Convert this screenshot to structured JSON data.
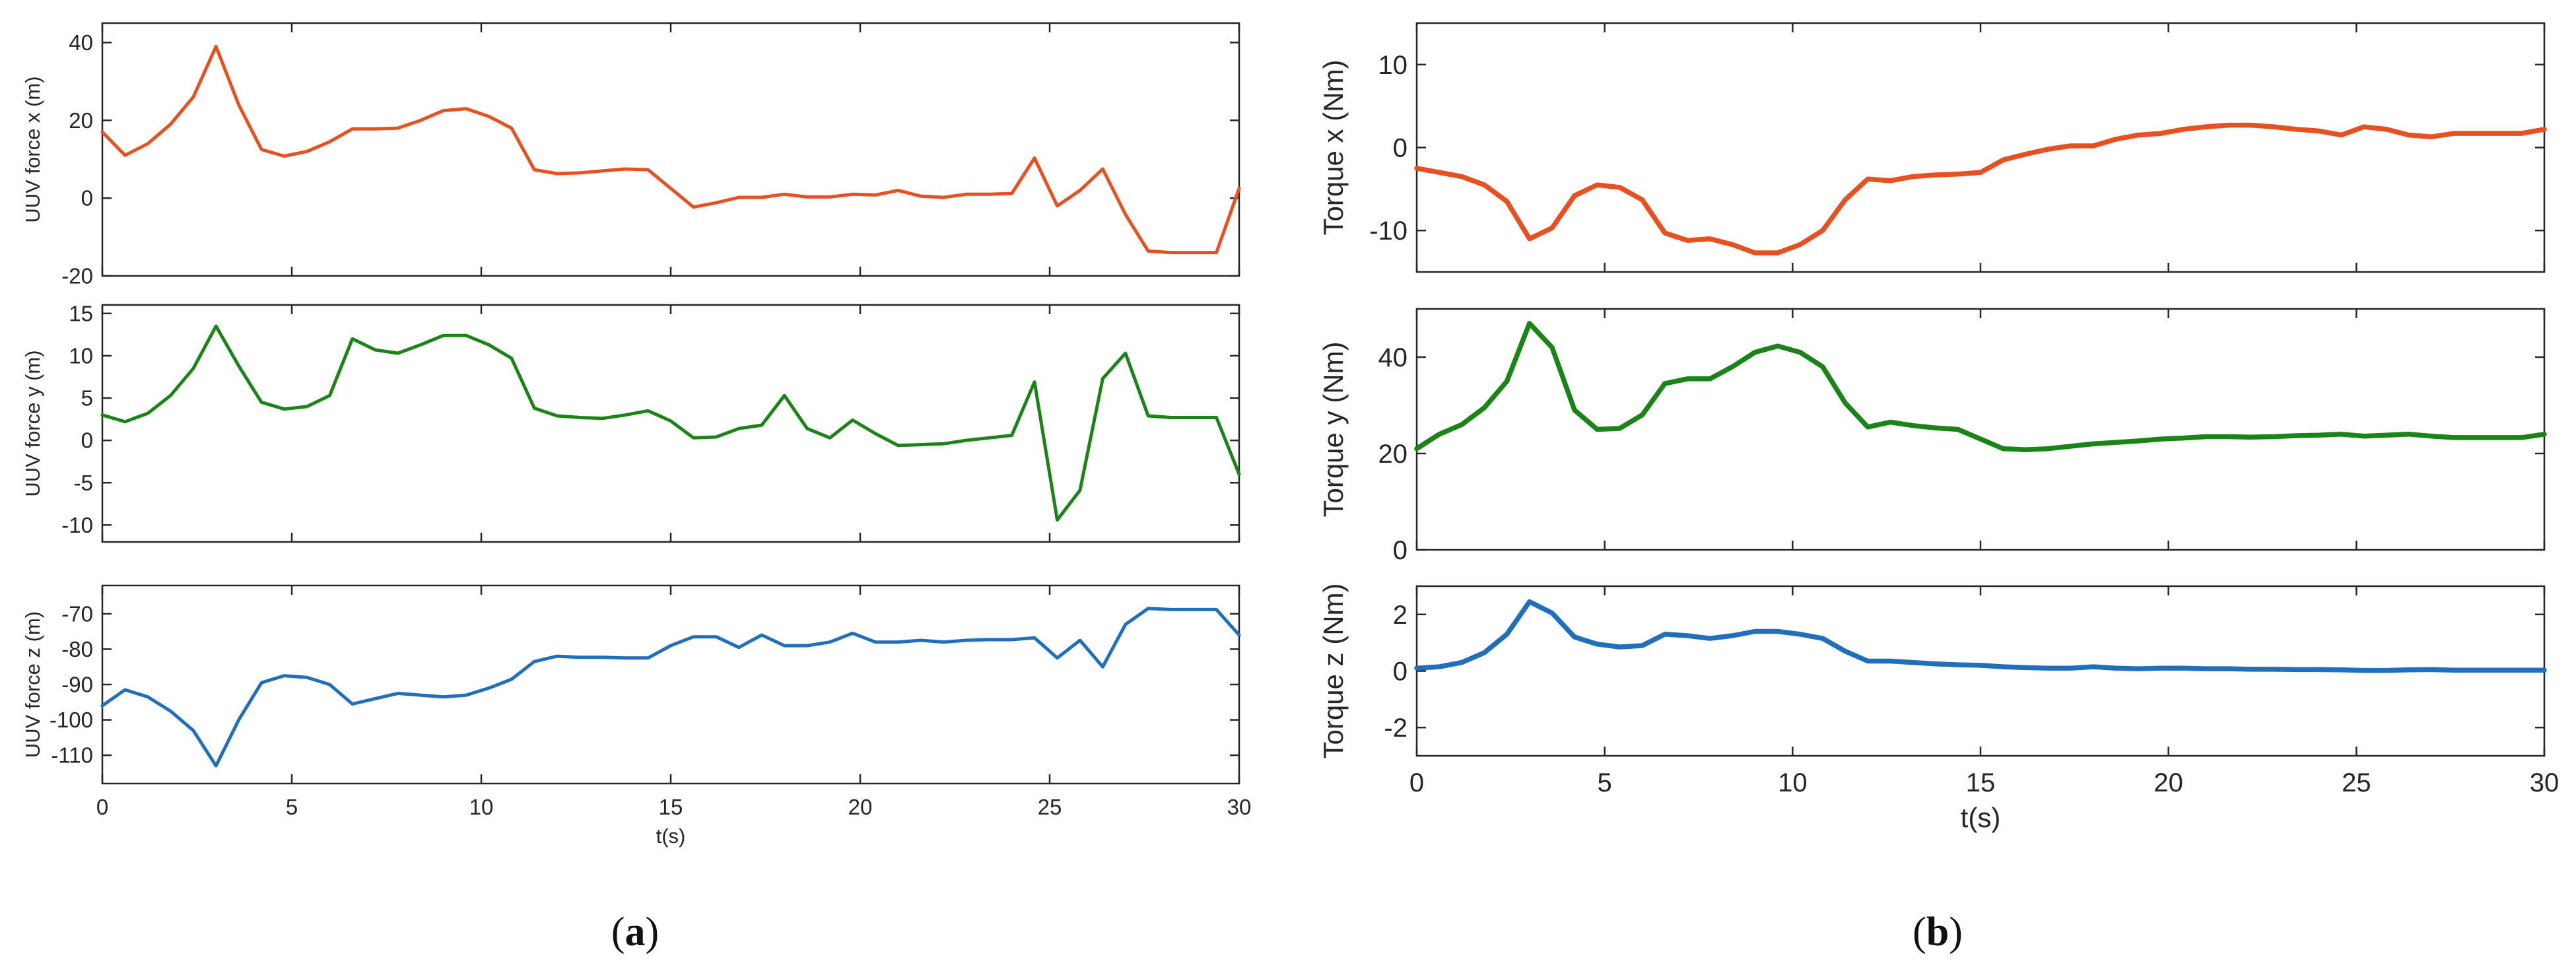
{
  "figure": {
    "captions": [
      "(a)",
      "(b)"
    ],
    "caption_letters": [
      "a",
      "b"
    ]
  },
  "chart_data": [
    {
      "panel": "a",
      "type": "line",
      "color": "#e8501f",
      "title": "",
      "xlabel": "",
      "ylabel": "UUV force x (m)",
      "xlim": [
        0,
        30
      ],
      "ylim": [
        -20,
        45
      ],
      "xticks": [
        0,
        5,
        10,
        15,
        20,
        25,
        30
      ],
      "show_xtick_labels": false,
      "yticks": [
        -20,
        0,
        20,
        40
      ],
      "x": [
        0,
        0.6,
        1.2,
        1.8,
        2.4,
        3,
        3.6,
        4.2,
        4.8,
        5.4,
        6,
        6.6,
        7.2,
        7.8,
        8.4,
        9,
        9.6,
        10.2,
        10.8,
        11.4,
        12,
        12.6,
        13.2,
        13.8,
        14.4,
        15,
        15.6,
        16.2,
        16.8,
        17.4,
        18,
        18.6,
        19.2,
        19.8,
        20.4,
        21,
        21.6,
        22.2,
        22.8,
        23.4,
        24,
        24.6,
        25.2,
        25.8,
        26.4,
        27,
        27.6,
        28.2,
        28.8,
        29.4,
        30
      ],
      "y": [
        17,
        11,
        14,
        19,
        26,
        39,
        24,
        12.5,
        10.8,
        12,
        14.5,
        17.8,
        17.8,
        18,
        20,
        22.5,
        23,
        21,
        18,
        7.3,
        6.3,
        6.5,
        7,
        7.5,
        7.3,
        2.5,
        -2.3,
        -1.2,
        0.2,
        0.2,
        1,
        0.3,
        0.3,
        1,
        0.8,
        2,
        0.5,
        0.2,
        1,
        1,
        1.2,
        10.3,
        -2,
        2,
        7.5,
        -4.2,
        -13.6,
        -14,
        -14,
        -14,
        2.5
      ]
    },
    {
      "panel": "a",
      "type": "line",
      "color": "#1a8516",
      "title": "",
      "xlabel": "",
      "ylabel": "UUV force y (m)",
      "xlim": [
        0,
        30
      ],
      "ylim": [
        -12,
        16
      ],
      "xticks": [
        0,
        5,
        10,
        15,
        20,
        25,
        30
      ],
      "show_xtick_labels": false,
      "yticks": [
        -10,
        -5,
        0,
        5,
        10,
        15
      ],
      "x": [
        0,
        0.6,
        1.2,
        1.8,
        2.4,
        3,
        3.6,
        4.2,
        4.8,
        5.4,
        6,
        6.6,
        7.2,
        7.8,
        8.4,
        9,
        9.6,
        10.2,
        10.8,
        11.4,
        12,
        12.6,
        13.2,
        13.8,
        14.4,
        15,
        15.6,
        16.2,
        16.8,
        17.4,
        18,
        18.6,
        19.2,
        19.8,
        20.4,
        21,
        21.6,
        22.2,
        22.8,
        23.4,
        24,
        24.6,
        25.2,
        25.8,
        26.4,
        27,
        27.6,
        28.2,
        28.8,
        29.4,
        30
      ],
      "y": [
        3,
        2.2,
        3.2,
        5.3,
        8.5,
        13.5,
        8.8,
        4.5,
        3.7,
        4,
        5.3,
        12,
        10.7,
        10.3,
        11.3,
        12.4,
        12.4,
        11.3,
        9.7,
        3.8,
        2.9,
        2.7,
        2.6,
        3,
        3.5,
        2.3,
        0.3,
        0.4,
        1.4,
        1.8,
        5.3,
        1.4,
        0.3,
        2.4,
        0.8,
        -0.6,
        -0.5,
        -0.4,
        0,
        0.3,
        0.6,
        6.9,
        -9.4,
        -5.9,
        7.3,
        10.3,
        2.9,
        2.7,
        2.7,
        2.7,
        -4
      ]
    },
    {
      "panel": "a",
      "type": "line",
      "color": "#1f6fbd",
      "title": "",
      "xlabel": "t(s)",
      "ylabel": "UUV force z (m)",
      "xlim": [
        0,
        30
      ],
      "ylim": [
        -118,
        -62
      ],
      "xticks": [
        0,
        5,
        10,
        15,
        20,
        25,
        30
      ],
      "show_xtick_labels": true,
      "yticks": [
        -110,
        -100,
        -90,
        -80,
        -70
      ],
      "x": [
        0,
        0.6,
        1.2,
        1.8,
        2.4,
        3,
        3.6,
        4.2,
        4.8,
        5.4,
        6,
        6.6,
        7.2,
        7.8,
        8.4,
        9,
        9.6,
        10.2,
        10.8,
        11.4,
        12,
        12.6,
        13.2,
        13.8,
        14.4,
        15,
        15.6,
        16.2,
        16.8,
        17.4,
        18,
        18.6,
        19.2,
        19.8,
        20.4,
        21,
        21.6,
        22.2,
        22.8,
        23.4,
        24,
        24.6,
        25.2,
        25.8,
        26.4,
        27,
        27.6,
        28.2,
        28.8,
        29.4,
        30
      ],
      "y": [
        -96,
        -91.5,
        -93.5,
        -97.5,
        -103,
        -113,
        -100,
        -89.5,
        -87.5,
        -88,
        -90,
        -95.5,
        -94,
        -92.5,
        -93,
        -93.5,
        -93,
        -91,
        -88.5,
        -83.5,
        -82,
        -82.3,
        -82.3,
        -82.5,
        -82.5,
        -79,
        -76.5,
        -76.5,
        -79.5,
        -76,
        -79,
        -79,
        -78,
        -75.5,
        -78,
        -78,
        -77.5,
        -78,
        -77.5,
        -77.3,
        -77.3,
        -76.8,
        -82.5,
        -77.5,
        -85,
        -73,
        -68.5,
        -68.8,
        -68.8,
        -68.8,
        -76
      ]
    },
    {
      "panel": "b",
      "type": "line",
      "color": "#e8501f",
      "title": "",
      "xlabel": "",
      "ylabel": "Torque x (Nm)",
      "xlim": [
        0,
        30
      ],
      "ylim": [
        -15,
        15
      ],
      "xticks": [
        0,
        5,
        10,
        15,
        20,
        25,
        30
      ],
      "show_xtick_labels": false,
      "yticks": [
        -10,
        0,
        10
      ],
      "x": [
        0,
        0.6,
        1.2,
        1.8,
        2.4,
        3,
        3.6,
        4.2,
        4.8,
        5.4,
        6,
        6.6,
        7.2,
        7.8,
        8.4,
        9,
        9.6,
        10.2,
        10.8,
        11.4,
        12,
        12.6,
        13.2,
        13.8,
        14.4,
        15,
        15.6,
        16.2,
        16.8,
        17.4,
        18,
        18.6,
        19.2,
        19.8,
        20.4,
        21,
        21.6,
        22.2,
        22.8,
        23.4,
        24,
        24.6,
        25.2,
        25.8,
        26.4,
        27,
        27.6,
        28.2,
        28.8,
        29.4,
        30
      ],
      "y": [
        -2.5,
        -3,
        -3.5,
        -4.5,
        -6.5,
        -11,
        -9.7,
        -5.8,
        -4.5,
        -4.8,
        -6.3,
        -10.3,
        -11.2,
        -11,
        -11.7,
        -12.7,
        -12.7,
        -11.7,
        -10,
        -6.3,
        -3.8,
        -4,
        -3.5,
        -3.3,
        -3.2,
        -3,
        -1.5,
        -0.8,
        -0.2,
        0.2,
        0.2,
        1,
        1.5,
        1.7,
        2.2,
        2.5,
        2.7,
        2.7,
        2.5,
        2.2,
        2,
        1.5,
        2.5,
        2.2,
        1.5,
        1.3,
        1.7,
        1.7,
        1.7,
        1.7,
        2.2
      ]
    },
    {
      "panel": "b",
      "type": "line",
      "color": "#1a8516",
      "title": "",
      "xlabel": "",
      "ylabel": "Torque y (Nm)",
      "xlim": [
        0,
        30
      ],
      "ylim": [
        0,
        50
      ],
      "xticks": [
        0,
        5,
        10,
        15,
        20,
        25,
        30
      ],
      "show_xtick_labels": false,
      "yticks": [
        0,
        20,
        40
      ],
      "x": [
        0,
        0.6,
        1.2,
        1.8,
        2.4,
        3,
        3.6,
        4.2,
        4.8,
        5.4,
        6,
        6.6,
        7.2,
        7.8,
        8.4,
        9,
        9.6,
        10.2,
        10.8,
        11.4,
        12,
        12.6,
        13.2,
        13.8,
        14.4,
        15,
        15.6,
        16.2,
        16.8,
        17.4,
        18,
        18.6,
        19.2,
        19.8,
        20.4,
        21,
        21.6,
        22.2,
        22.8,
        23.4,
        24,
        24.6,
        25.2,
        25.8,
        26.4,
        27,
        27.6,
        28.2,
        28.8,
        29.4,
        30
      ],
      "y": [
        21,
        24,
        26,
        29.5,
        35,
        47,
        42,
        29,
        25,
        25.2,
        28,
        34.5,
        35.5,
        35.5,
        38,
        41,
        42.3,
        41,
        38,
        30.5,
        25.5,
        26.5,
        25.8,
        25.3,
        25,
        23,
        21,
        20.8,
        21,
        21.5,
        22,
        22.3,
        22.6,
        23,
        23.2,
        23.5,
        23.5,
        23.4,
        23.5,
        23.7,
        23.8,
        24,
        23.6,
        23.8,
        24,
        23.6,
        23.3,
        23.3,
        23.3,
        23.3,
        24
      ]
    },
    {
      "panel": "b",
      "type": "line",
      "color": "#1f6fbd",
      "title": "",
      "xlabel": "t(s)",
      "ylabel": "Torque z (Nm)",
      "xlim": [
        0,
        30
      ],
      "ylim": [
        -3,
        3
      ],
      "xticks": [
        0,
        5,
        10,
        15,
        20,
        25,
        30
      ],
      "show_xtick_labels": true,
      "yticks": [
        -2,
        0,
        2
      ],
      "x": [
        0,
        0.6,
        1.2,
        1.8,
        2.4,
        3,
        3.6,
        4.2,
        4.8,
        5.4,
        6,
        6.6,
        7.2,
        7.8,
        8.4,
        9,
        9.6,
        10.2,
        10.8,
        11.4,
        12,
        12.6,
        13.2,
        13.8,
        14.4,
        15,
        15.6,
        16.2,
        16.8,
        17.4,
        18,
        18.6,
        19.2,
        19.8,
        20.4,
        21,
        21.6,
        22.2,
        22.8,
        23.4,
        24,
        24.6,
        25.2,
        25.8,
        26.4,
        27,
        27.6,
        28.2,
        28.8,
        29.4,
        30
      ],
      "y": [
        0.1,
        0.15,
        0.3,
        0.65,
        1.3,
        2.45,
        2.05,
        1.2,
        0.95,
        0.85,
        0.9,
        1.3,
        1.25,
        1.15,
        1.25,
        1.4,
        1.4,
        1.3,
        1.15,
        0.7,
        0.35,
        0.35,
        0.3,
        0.25,
        0.22,
        0.2,
        0.15,
        0.12,
        0.1,
        0.1,
        0.15,
        0.1,
        0.08,
        0.1,
        0.1,
        0.08,
        0.08,
        0.06,
        0.06,
        0.05,
        0.05,
        0.04,
        0.02,
        0.02,
        0.04,
        0.05,
        0.03,
        0.03,
        0.03,
        0.03,
        0.03
      ]
    }
  ]
}
